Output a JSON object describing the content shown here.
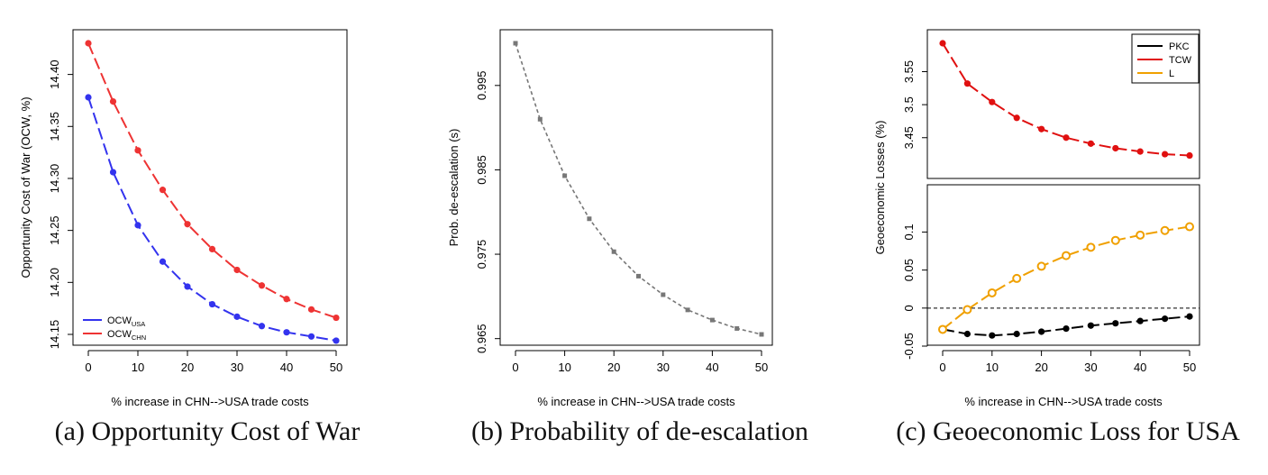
{
  "captions": [
    "(a) Opportunity Cost of War",
    "(b) Probability of de-escalation",
    "(c) Geoeconomic Loss for USA"
  ],
  "colors": {
    "usa": "#3333ee",
    "chn": "#ee3333",
    "grey": "#777777",
    "pkc": "#000000",
    "tcw": "#e01010",
    "l": "#f0a000"
  },
  "chart_data": [
    {
      "type": "line",
      "xlabel": "% increase in CHN-->USA trade costs",
      "ylabel": "Opportunity Cost of War (OCW, %)",
      "xlim": [
        0,
        50
      ],
      "ylim": [
        14.15,
        14.43
      ],
      "xticks": [
        0,
        10,
        20,
        30,
        40,
        50
      ],
      "yticks": [
        14.15,
        14.2,
        14.25,
        14.3,
        14.35,
        14.4
      ],
      "ytick_labels": [
        "14.15",
        "14.20",
        "14.25",
        "14.30",
        "14.35",
        "14.40"
      ],
      "legend_position": "bottom-left",
      "x": [
        0,
        5,
        10,
        15,
        20,
        25,
        30,
        35,
        40,
        45,
        50
      ],
      "series": [
        {
          "name": "OCW",
          "subscript": "USA",
          "color": "#3333ee",
          "values": [
            14.378,
            14.306,
            14.255,
            14.22,
            14.196,
            14.179,
            14.167,
            14.158,
            14.152,
            14.148,
            14.144
          ]
        },
        {
          "name": "OCW",
          "subscript": "CHN",
          "color": "#ee3333",
          "values": [
            14.43,
            14.374,
            14.327,
            14.289,
            14.256,
            14.232,
            14.212,
            14.197,
            14.184,
            14.174,
            14.166
          ]
        }
      ]
    },
    {
      "type": "line",
      "xlabel": "% increase in CHN-->USA trade costs",
      "ylabel": "Prob. de-escalation (s)",
      "xlim": [
        0,
        50
      ],
      "ylim": [
        0.9655,
        1.0
      ],
      "xticks": [
        0,
        10,
        20,
        30,
        40,
        50
      ],
      "yticks": [
        0.965,
        0.975,
        0.985,
        0.995
      ],
      "ytick_labels": [
        "0.965",
        "0.975",
        "0.985",
        "0.995"
      ],
      "x": [
        0,
        5,
        10,
        15,
        20,
        25,
        30,
        35,
        40,
        45,
        50
      ],
      "series": [
        {
          "color": "#777777",
          "values": [
            1.0,
            0.991,
            0.9843,
            0.9792,
            0.9753,
            0.9724,
            0.9702,
            0.9684,
            0.9672,
            0.9662,
            0.9655
          ]
        }
      ]
    },
    {
      "type": "line",
      "panel": "top",
      "xlabel": "% increase in CHN-->USA trade costs",
      "ylabel": "Geoeconomic Losses (%)",
      "xlim": [
        0,
        50
      ],
      "ylim": [
        3.421,
        3.593
      ],
      "yticks": [
        3.45,
        3.5,
        3.55
      ],
      "ytick_labels": [
        "3.45",
        "3.5",
        "3.55"
      ],
      "legend_position": "top-right",
      "legend": [
        {
          "label": "PKC",
          "color": "#000000"
        },
        {
          "label": "TCW",
          "color": "#e01010"
        },
        {
          "label": "L",
          "color": "#f0a000"
        }
      ],
      "x": [
        0,
        5,
        10,
        15,
        20,
        25,
        30,
        35,
        40,
        45,
        50
      ],
      "series": [
        {
          "name": "TCW",
          "color": "#e01010",
          "values": [
            3.593,
            3.532,
            3.504,
            3.48,
            3.463,
            3.45,
            3.441,
            3.434,
            3.429,
            3.425,
            3.423
          ]
        }
      ]
    },
    {
      "type": "line",
      "panel": "bottom",
      "xlabel": "% increase in CHN-->USA trade costs",
      "ylabel": "Geoeconomic Losses (%)",
      "xlim": [
        0,
        50
      ],
      "ylim": [
        -0.05,
        0.11
      ],
      "xticks": [
        0,
        10,
        20,
        30,
        40,
        50
      ],
      "yticks": [
        -0.05,
        0,
        0.05,
        0.1
      ],
      "ytick_labels": [
        "-0.05",
        "0",
        "0.05",
        "0.1"
      ],
      "hline": 0,
      "x": [
        0,
        5,
        10,
        15,
        20,
        25,
        30,
        35,
        40,
        45,
        50
      ],
      "series": [
        {
          "name": "PKC",
          "color": "#000000",
          "values": [
            -0.028,
            -0.034,
            -0.036,
            -0.034,
            -0.031,
            -0.027,
            -0.023,
            -0.02,
            -0.017,
            -0.014,
            -0.011
          ]
        },
        {
          "name": "L",
          "color": "#f0a000",
          "values": [
            -0.028,
            -0.002,
            0.02,
            0.039,
            0.055,
            0.069,
            0.08,
            0.089,
            0.096,
            0.102,
            0.107
          ]
        }
      ]
    }
  ]
}
